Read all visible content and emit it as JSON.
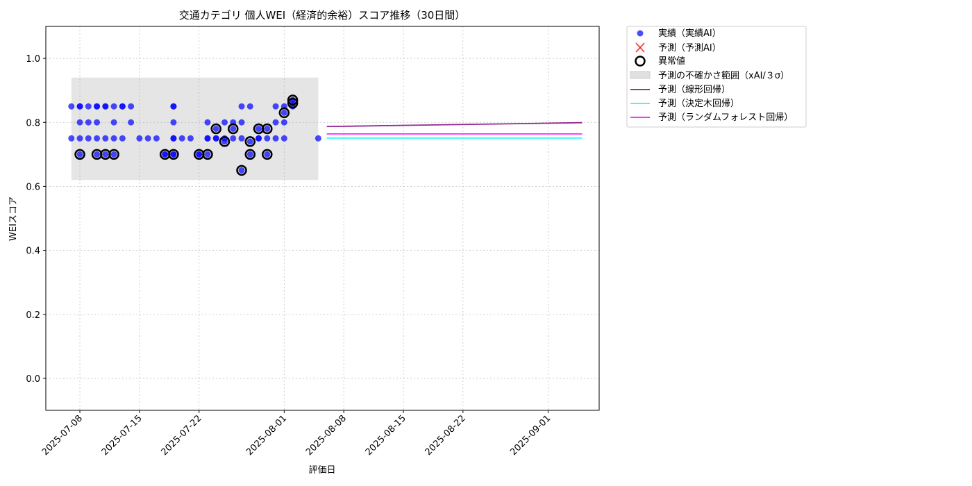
{
  "chart_data": {
    "type": "scatter",
    "title": "交通カテゴリ 個人WEI（経済的余裕）スコア推移（30日間）",
    "xlabel": "評価日",
    "ylabel": "WEIスコア",
    "xlim": [
      "2025-07-04",
      "2025-09-07"
    ],
    "ylim": [
      -0.1,
      1.1
    ],
    "yticks": [
      0.0,
      0.2,
      0.4,
      0.6,
      0.8,
      1.0
    ],
    "ytick_labels": [
      "0.0",
      "0.2",
      "0.4",
      "0.6",
      "0.8",
      "1.0"
    ],
    "xticks": [
      "2025-07-08",
      "2025-07-15",
      "2025-07-22",
      "2025-08-01",
      "2025-08-08",
      "2025-08-15",
      "2025-08-22",
      "2025-09-01"
    ],
    "grid": true,
    "legend_position": "outside-top-right",
    "legend": {
      "actual": "実績（実績AI）",
      "predicted": "予測（予測AI）",
      "anomaly": "異常値",
      "band": "予測の不確かさ範囲（xAI/３σ）",
      "linear": "予測（線形回帰）",
      "tree": "予測（決定木回帰）",
      "forest": "予測（ランダムフォレスト回帰）"
    },
    "colors": {
      "actual": "#0000ff",
      "predicted": "#ff0000",
      "anomaly": "#000000",
      "band": "#d3d3d3",
      "linear": "#800080",
      "tree": "#00ffff",
      "forest": "#ff00ff"
    },
    "band": {
      "x": [
        "2025-07-07",
        "2025-08-05"
      ],
      "y": [
        0.62,
        0.94
      ]
    },
    "actual_points": [
      [
        "2025-07-07",
        0.75
      ],
      [
        "2025-07-07",
        0.85
      ],
      [
        "2025-07-08",
        0.85
      ],
      [
        "2025-07-08",
        0.75
      ],
      [
        "2025-07-08",
        0.7
      ],
      [
        "2025-07-08",
        0.85
      ],
      [
        "2025-07-08",
        0.8
      ],
      [
        "2025-07-09",
        0.85
      ],
      [
        "2025-07-09",
        0.75
      ],
      [
        "2025-07-09",
        0.8
      ],
      [
        "2025-07-10",
        0.75
      ],
      [
        "2025-07-10",
        0.8
      ],
      [
        "2025-07-10",
        0.7
      ],
      [
        "2025-07-10",
        0.85
      ],
      [
        "2025-07-10",
        0.85
      ],
      [
        "2025-07-11",
        0.75
      ],
      [
        "2025-07-11",
        0.85
      ],
      [
        "2025-07-11",
        0.7
      ],
      [
        "2025-07-11",
        0.85
      ],
      [
        "2025-07-12",
        0.85
      ],
      [
        "2025-07-12",
        0.75
      ],
      [
        "2025-07-12",
        0.8
      ],
      [
        "2025-07-12",
        0.7
      ],
      [
        "2025-07-13",
        0.85
      ],
      [
        "2025-07-13",
        0.75
      ],
      [
        "2025-07-13",
        0.85
      ],
      [
        "2025-07-14",
        0.8
      ],
      [
        "2025-07-14",
        0.85
      ],
      [
        "2025-07-15",
        0.75
      ],
      [
        "2025-07-16",
        0.75
      ],
      [
        "2025-07-17",
        0.75
      ],
      [
        "2025-07-18",
        0.7
      ],
      [
        "2025-07-18",
        0.7
      ],
      [
        "2025-07-19",
        0.8
      ],
      [
        "2025-07-19",
        0.75
      ],
      [
        "2025-07-19",
        0.85
      ],
      [
        "2025-07-19",
        0.7
      ],
      [
        "2025-07-19",
        0.75
      ],
      [
        "2025-07-19",
        0.7
      ],
      [
        "2025-07-19",
        0.85
      ],
      [
        "2025-07-20",
        0.75
      ],
      [
        "2025-07-21",
        0.75
      ],
      [
        "2025-07-22",
        0.7
      ],
      [
        "2025-07-22",
        0.7
      ],
      [
        "2025-07-23",
        0.7
      ],
      [
        "2025-07-23",
        0.75
      ],
      [
        "2025-07-23",
        0.75
      ],
      [
        "2025-07-23",
        0.8
      ],
      [
        "2025-07-24",
        0.75
      ],
      [
        "2025-07-24",
        0.78
      ],
      [
        "2025-07-24",
        0.75
      ],
      [
        "2025-07-25",
        0.8
      ],
      [
        "2025-07-25",
        0.74
      ],
      [
        "2025-07-25",
        0.75
      ],
      [
        "2025-07-26",
        0.78
      ],
      [
        "2025-07-26",
        0.75
      ],
      [
        "2025-07-26",
        0.8
      ],
      [
        "2025-07-27",
        0.65
      ],
      [
        "2025-07-27",
        0.85
      ],
      [
        "2025-07-27",
        0.8
      ],
      [
        "2025-07-27",
        0.75
      ],
      [
        "2025-07-28",
        0.7
      ],
      [
        "2025-07-28",
        0.74
      ],
      [
        "2025-07-28",
        0.85
      ],
      [
        "2025-07-29",
        0.78
      ],
      [
        "2025-07-29",
        0.75
      ],
      [
        "2025-07-29",
        0.75
      ],
      [
        "2025-07-30",
        0.7
      ],
      [
        "2025-07-30",
        0.75
      ],
      [
        "2025-07-30",
        0.78
      ],
      [
        "2025-07-31",
        0.75
      ],
      [
        "2025-07-31",
        0.8
      ],
      [
        "2025-07-31",
        0.85
      ],
      [
        "2025-08-01",
        0.85
      ],
      [
        "2025-08-01",
        0.8
      ],
      [
        "2025-08-01",
        0.83
      ],
      [
        "2025-08-01",
        0.75
      ],
      [
        "2025-08-02",
        0.86
      ],
      [
        "2025-08-02",
        0.87
      ],
      [
        "2025-08-02",
        0.85
      ],
      [
        "2025-08-05",
        0.75
      ]
    ],
    "anomaly_points": [
      [
        "2025-07-08",
        0.7
      ],
      [
        "2025-07-10",
        0.7
      ],
      [
        "2025-07-11",
        0.7
      ],
      [
        "2025-07-12",
        0.7
      ],
      [
        "2025-07-18",
        0.7
      ],
      [
        "2025-07-19",
        0.7
      ],
      [
        "2025-07-22",
        0.7
      ],
      [
        "2025-07-23",
        0.7
      ],
      [
        "2025-07-24",
        0.78
      ],
      [
        "2025-07-25",
        0.74
      ],
      [
        "2025-07-26",
        0.78
      ],
      [
        "2025-07-27",
        0.65
      ],
      [
        "2025-07-28",
        0.7
      ],
      [
        "2025-07-28",
        0.74
      ],
      [
        "2025-07-29",
        0.78
      ],
      [
        "2025-07-30",
        0.7
      ],
      [
        "2025-07-30",
        0.78
      ],
      [
        "2025-08-01",
        0.83
      ],
      [
        "2025-08-02",
        0.86
      ],
      [
        "2025-08-02",
        0.87
      ]
    ],
    "linear_line": {
      "x": [
        "2025-08-06",
        "2025-09-05"
      ],
      "y": [
        0.787,
        0.799
      ]
    },
    "tree_line": {
      "x": [
        "2025-08-06",
        "2025-09-05"
      ],
      "y": [
        0.751,
        0.751
      ]
    },
    "forest_line": {
      "x": [
        "2025-08-06",
        "2025-09-05"
      ],
      "y": [
        0.764,
        0.764
      ]
    }
  }
}
